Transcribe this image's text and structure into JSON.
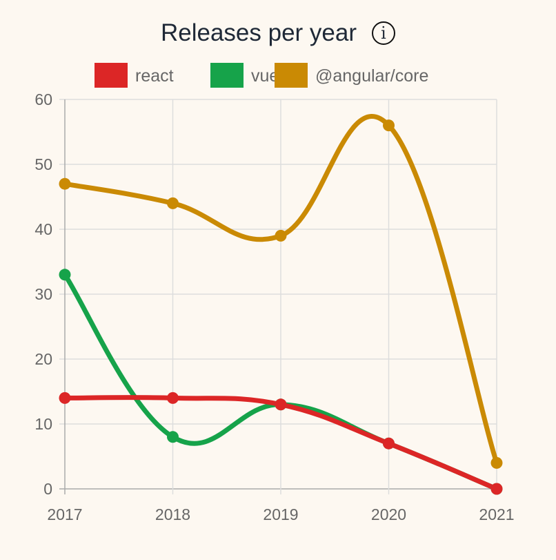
{
  "title": "Releases per year",
  "info_icon": "info-circle-icon",
  "chart_data": {
    "type": "line",
    "title": "Releases per year",
    "categories": [
      "2017",
      "2018",
      "2019",
      "2020",
      "2021"
    ],
    "series": [
      {
        "name": "react",
        "color": "#dc2626",
        "values": [
          14,
          14,
          13,
          7,
          0
        ]
      },
      {
        "name": "vue",
        "color": "#16a34a",
        "values": [
          33,
          8,
          13,
          7,
          0
        ]
      },
      {
        "name": "@angular/core",
        "color": "#ca8a04",
        "values": [
          47,
          44,
          39,
          56,
          4
        ]
      }
    ],
    "ylim": [
      0,
      60
    ],
    "yticks": [
      "0",
      "10",
      "20",
      "30",
      "40",
      "50",
      "60"
    ],
    "grid": true,
    "smooth": true,
    "legend": "top"
  }
}
